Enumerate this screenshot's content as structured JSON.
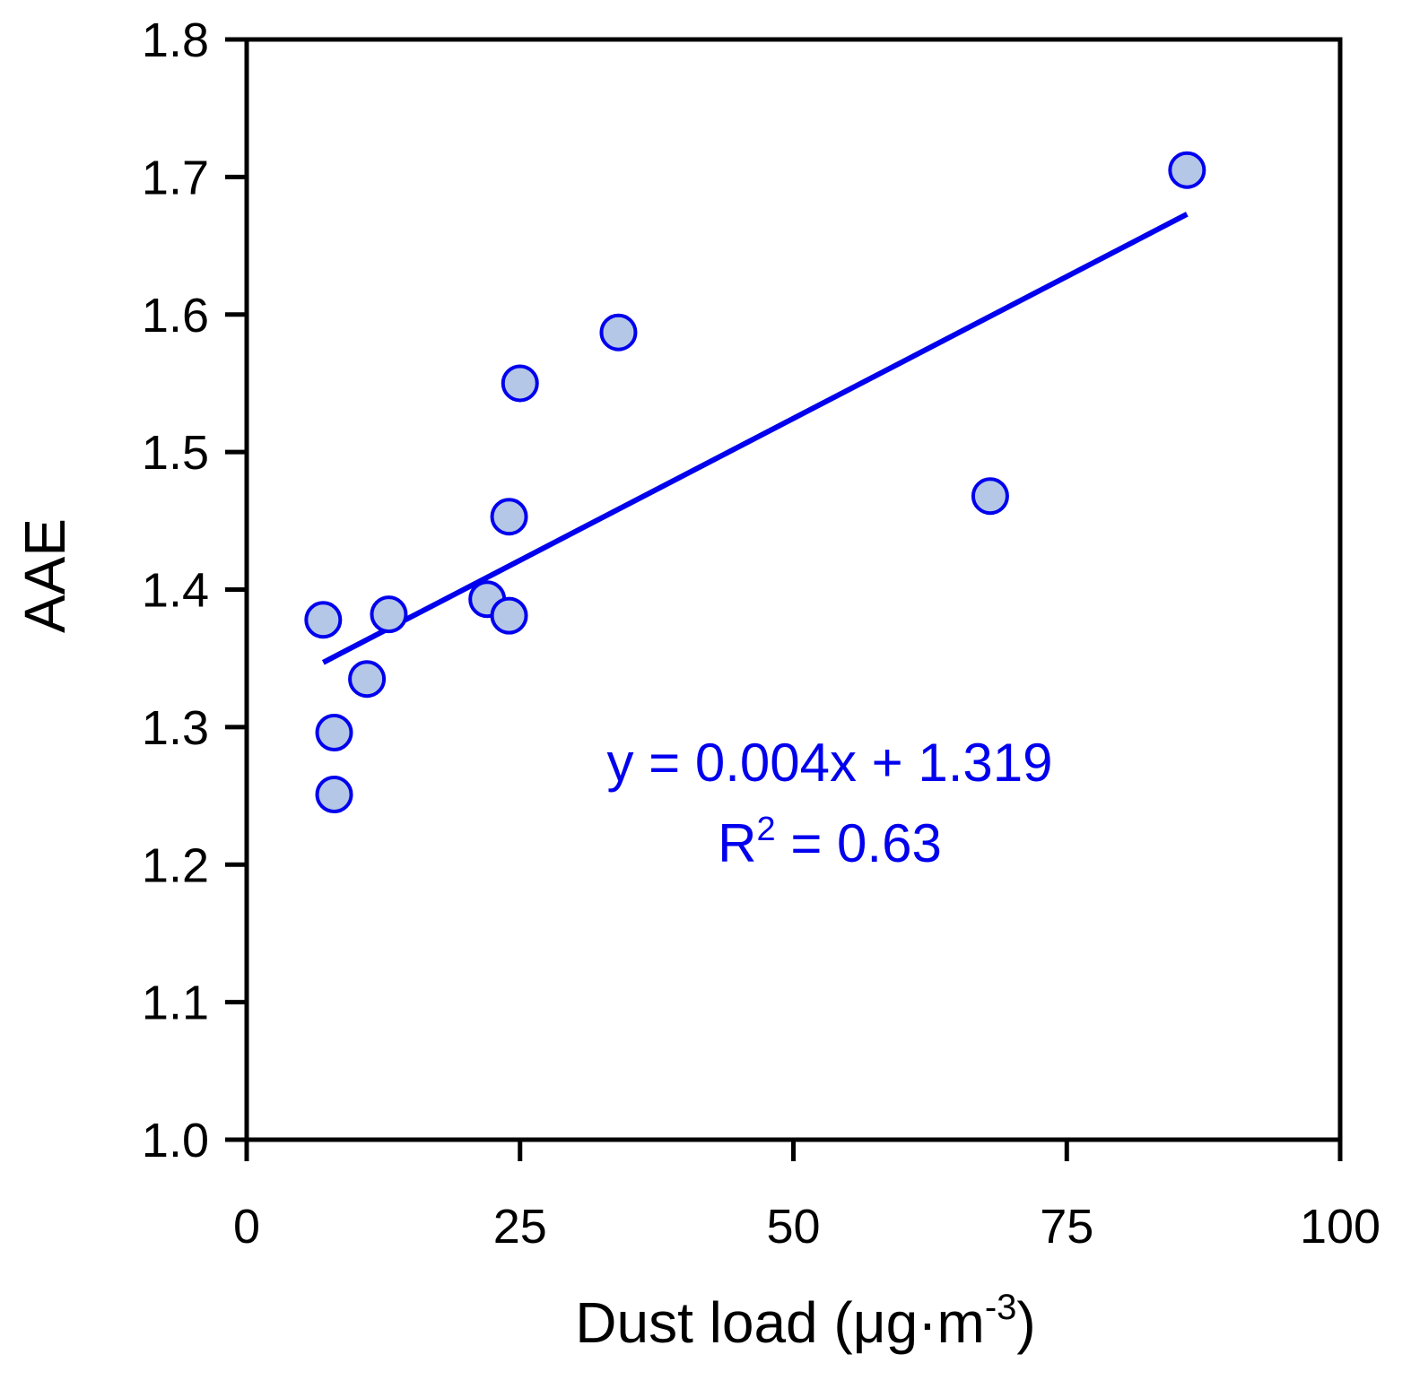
{
  "chart_data": {
    "type": "scatter",
    "title": "",
    "xlabel": "Dust load (μg·m",
    "xlabel_superscript": "-3",
    "xlabel_suffix": ")",
    "ylabel": "AAE",
    "xlim": [
      0,
      100
    ],
    "ylim": [
      1.0,
      1.8
    ],
    "xticks": [
      0,
      25,
      50,
      75,
      100
    ],
    "xtick_labels": [
      "0",
      "25",
      "50",
      "75",
      "100"
    ],
    "yticks": [
      1.0,
      1.1,
      1.2,
      1.3,
      1.4,
      1.5,
      1.6,
      1.7,
      1.8
    ],
    "ytick_labels": [
      "1.0",
      "1.1",
      "1.2",
      "1.3",
      "1.4",
      "1.5",
      "1.6",
      "1.7",
      "1.8"
    ],
    "grid": false,
    "legend": "none",
    "points": [
      {
        "x": 7,
        "y": 1.378
      },
      {
        "x": 8,
        "y": 1.296
      },
      {
        "x": 8,
        "y": 1.251
      },
      {
        "x": 11,
        "y": 1.335
      },
      {
        "x": 13,
        "y": 1.382
      },
      {
        "x": 22,
        "y": 1.393
      },
      {
        "x": 24,
        "y": 1.381
      },
      {
        "x": 24,
        "y": 1.453
      },
      {
        "x": 25,
        "y": 1.55
      },
      {
        "x": 34,
        "y": 1.587
      },
      {
        "x": 68,
        "y": 1.468
      },
      {
        "x": 86,
        "y": 1.705
      }
    ],
    "trendline": {
      "x": [
        7,
        86
      ],
      "y": [
        1.347,
        1.673
      ]
    },
    "annotation": {
      "equation": "y = 0.004x + 1.319",
      "r2_prefix": "R",
      "r2_superscript": "2",
      "r2_suffix": " = 0.63"
    },
    "colors": {
      "marker_fill": "#b4c7e7",
      "marker_edge": "#0000ee",
      "trendline": "#0000ee",
      "annotation": "#0000ee",
      "axes": "#000000"
    }
  }
}
